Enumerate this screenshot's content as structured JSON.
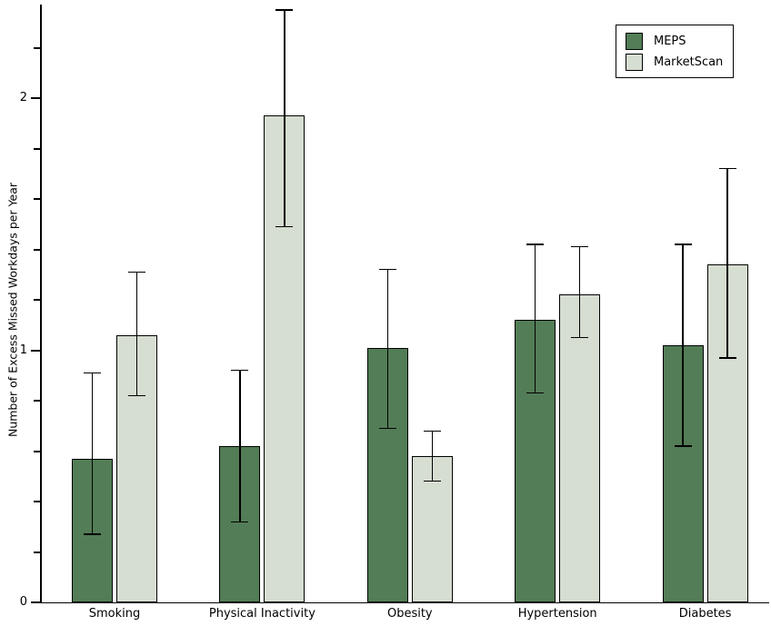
{
  "figure": {
    "background": "#ffffff",
    "y_axis_title": "Number of Excess Missed Workdays per Year"
  },
  "legend": {
    "entries": [
      {
        "label": "MEPS",
        "color": "#537d56"
      },
      {
        "label": "MarketScan",
        "color": "#d6ddd1"
      }
    ]
  },
  "chart_data": {
    "type": "bar",
    "title": "",
    "xlabel": "",
    "ylabel": "Number of Excess Missed Workdays per Year",
    "categories": [
      "Smoking",
      "Physical Inactivity",
      "Obesity",
      "Hypertension",
      "Diabetes"
    ],
    "series": [
      {
        "name": "MEPS",
        "color": "#537d56",
        "values": [
          0.57,
          0.62,
          1.01,
          1.12,
          1.02
        ],
        "ci_low": [
          0.27,
          0.32,
          0.69,
          0.83,
          0.62
        ],
        "ci_high": [
          0.91,
          0.92,
          1.32,
          1.42,
          1.42
        ]
      },
      {
        "name": "MarketScan",
        "color": "#d6ddd1",
        "values": [
          1.06,
          1.93,
          0.58,
          1.22,
          1.34
        ],
        "ci_low": [
          0.82,
          1.49,
          0.48,
          1.05,
          0.97
        ],
        "ci_high": [
          1.31,
          2.35,
          0.68,
          1.41,
          1.72
        ]
      }
    ],
    "error_bars": true,
    "ylim": [
      0,
      2.37
    ],
    "yticks": [
      0,
      1,
      2
    ],
    "ytick_labels": [
      "0",
      "1",
      "2"
    ],
    "minor_tick_step": 0.2,
    "grid": false,
    "legend_position": "top-right",
    "bar_edge_color": "#000000",
    "axis_color": "#000000"
  }
}
